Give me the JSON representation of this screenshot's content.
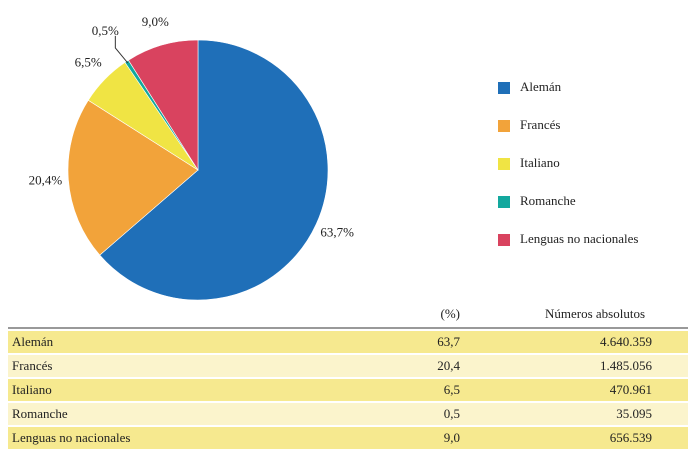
{
  "chart_data": {
    "type": "pie",
    "categories": [
      "Alemán",
      "Francés",
      "Italiano",
      "Romanche",
      "Lenguas no nacionales"
    ],
    "values": [
      63.7,
      20.4,
      6.5,
      0.5,
      9.0
    ],
    "value_labels": [
      "63,7%",
      "20,4%",
      "6,5%",
      "0,5%",
      "9,0%"
    ],
    "colors": [
      "#1f6fb8",
      "#f2a33a",
      "#f0e444",
      "#13a89e",
      "#d9435f"
    ],
    "legend": "right"
  },
  "table": {
    "columns": [
      "(%)",
      "Números absolutos"
    ],
    "rows": [
      [
        "Alemán",
        "63,7",
        "4.640.359"
      ],
      [
        "Francés",
        "20,4",
        "1.485.056"
      ],
      [
        "Italiano",
        "6,5",
        "470.961"
      ],
      [
        "Romanche",
        "0,5",
        "35.095"
      ],
      [
        "Lenguas no nacionales",
        "9,0",
        "656.539"
      ]
    ]
  }
}
